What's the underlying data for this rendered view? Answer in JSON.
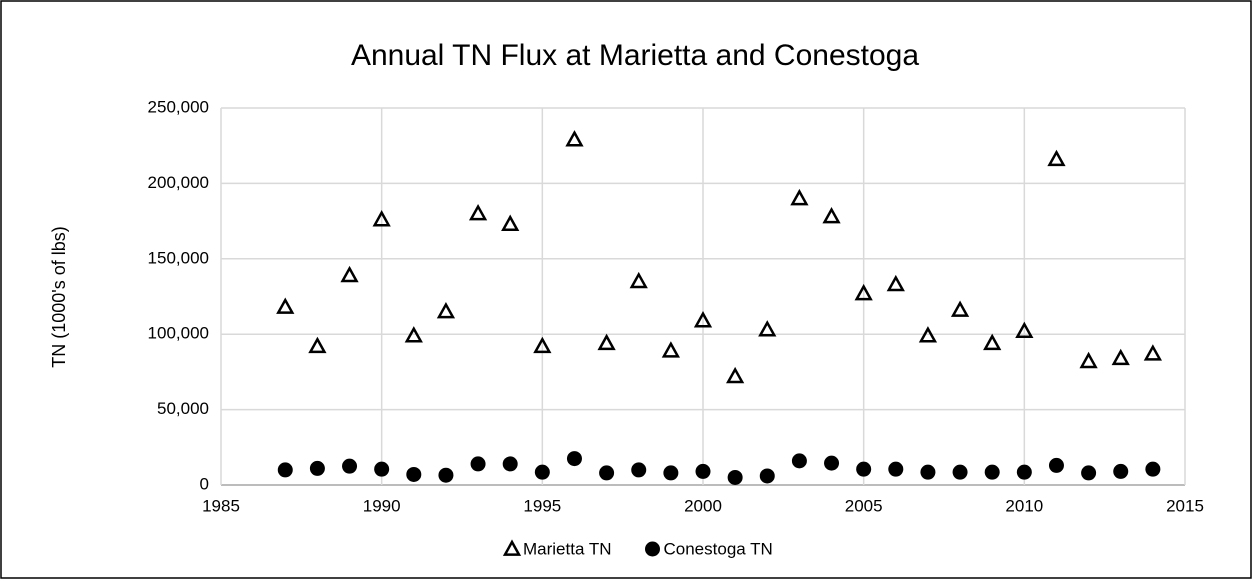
{
  "chart_data": {
    "type": "scatter",
    "title": "Annual TN Flux at Marietta and Conestoga",
    "y_label": "TN (1000's of lbs)",
    "x": [
      1987,
      1988,
      1989,
      1990,
      1991,
      1992,
      1993,
      1994,
      1995,
      1996,
      1997,
      1998,
      1999,
      2000,
      2001,
      2002,
      2003,
      2004,
      2005,
      2006,
      2007,
      2008,
      2009,
      2010,
      2011,
      2012,
      2013,
      2014
    ],
    "series": [
      {
        "name": "Marietta TN",
        "color": "#000000",
        "marker": "triangle",
        "values": [
          118000,
          92000,
          139000,
          176000,
          99000,
          115000,
          180000,
          173000,
          92000,
          229000,
          94000,
          135000,
          89000,
          109000,
          72000,
          103000,
          190000,
          178000,
          127000,
          133000,
          99000,
          116000,
          94000,
          102000,
          216000,
          82000,
          84000,
          87000
        ]
      },
      {
        "name": "Conestoga TN",
        "color": "#000000",
        "marker": "circle",
        "values": [
          10000,
          11000,
          12500,
          10500,
          7000,
          6500,
          14000,
          14000,
          8500,
          17500,
          8000,
          10000,
          8000,
          9000,
          5000,
          6000,
          16000,
          14500,
          10500,
          10500,
          8500,
          8500,
          8500,
          8500,
          13000,
          8000,
          9000,
          10500
        ]
      }
    ],
    "xlim": [
      1985,
      2015
    ],
    "xticks": [
      1985,
      1990,
      1995,
      2000,
      2005,
      2010,
      2015
    ],
    "ylim": [
      0,
      250000
    ],
    "yticks": [
      0,
      {
        "value": 50000,
        "label": "50,000"
      },
      {
        "value": 100000,
        "label": "100,000"
      },
      {
        "value": 150000,
        "label": "150,000"
      },
      {
        "value": 200000,
        "label": "200,000"
      },
      {
        "value": 250000,
        "label": "250,000"
      }
    ],
    "grid": true,
    "legend": "bottom"
  }
}
